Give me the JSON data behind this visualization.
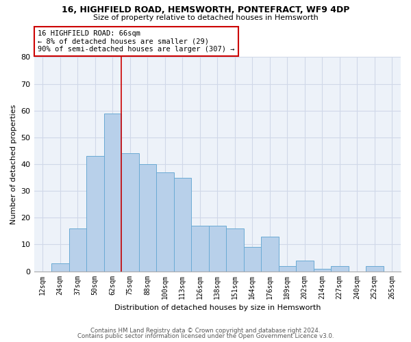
{
  "title1": "16, HIGHFIELD ROAD, HEMSWORTH, PONTEFRACT, WF9 4DP",
  "title2": "Size of property relative to detached houses in Hemsworth",
  "xlabel": "Distribution of detached houses by size in Hemsworth",
  "ylabel": "Number of detached properties",
  "categories": [
    "12sqm",
    "24sqm",
    "37sqm",
    "50sqm",
    "62sqm",
    "75sqm",
    "88sqm",
    "100sqm",
    "113sqm",
    "126sqm",
    "138sqm",
    "151sqm",
    "164sqm",
    "176sqm",
    "189sqm",
    "202sqm",
    "214sqm",
    "227sqm",
    "240sqm",
    "252sqm",
    "265sqm"
  ],
  "values": [
    0,
    3,
    16,
    43,
    59,
    44,
    40,
    37,
    35,
    17,
    17,
    16,
    9,
    13,
    2,
    4,
    1,
    2,
    0,
    2,
    0
  ],
  "bar_color": "#b8d0ea",
  "bar_edge_color": "#6aaad4",
  "vline_color": "#cc0000",
  "annotation_text": "16 HIGHFIELD ROAD: 66sqm\n← 8% of detached houses are smaller (29)\n90% of semi-detached houses are larger (307) →",
  "annotation_bbox_color": "white",
  "annotation_bbox_edge": "#cc0000",
  "ylim": [
    0,
    80
  ],
  "yticks": [
    0,
    10,
    20,
    30,
    40,
    50,
    60,
    70,
    80
  ],
  "grid_color": "#d0d8e8",
  "background_color": "#edf2f9",
  "footer1": "Contains HM Land Registry data © Crown copyright and database right 2024.",
  "footer2": "Contains public sector information licensed under the Open Government Licence v3.0."
}
